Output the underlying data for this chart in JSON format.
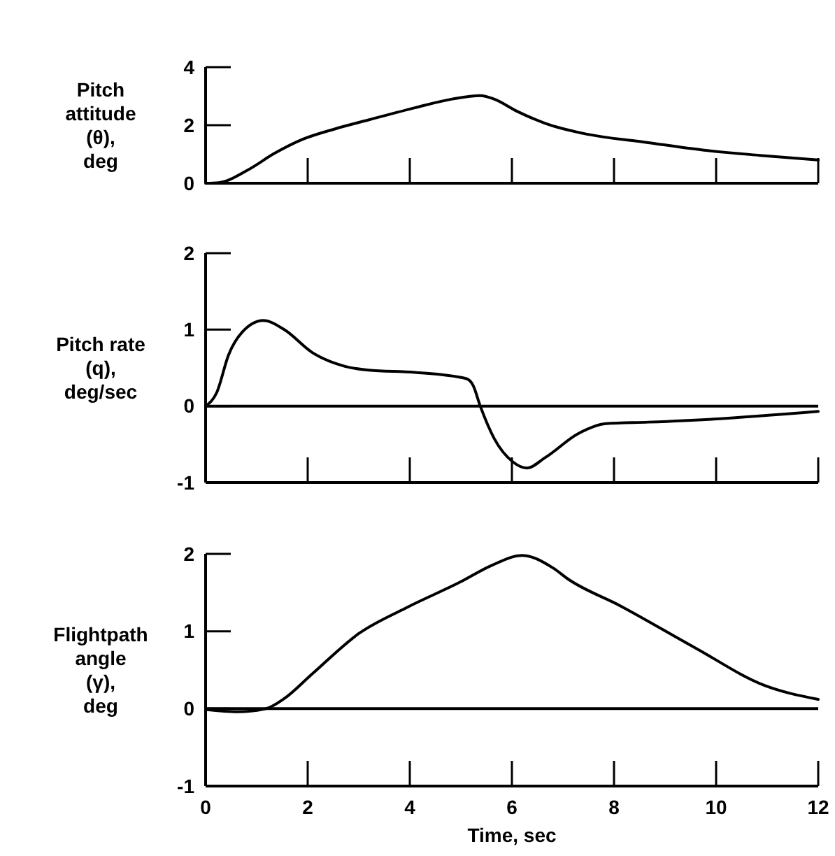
{
  "chart_data": [
    {
      "type": "line",
      "ylabel": "Pitch\nattitude\n(θ),\ndeg",
      "color": "#000000",
      "tick_labels": "y",
      "xlim": [
        0,
        12
      ],
      "xticks": [
        0,
        2,
        4,
        6,
        8,
        10,
        12
      ],
      "ylim": [
        0,
        4
      ],
      "yticks": [
        0,
        2,
        4
      ],
      "x": [
        0,
        0.26,
        0.81,
        1.36,
        1.91,
        2.55,
        3.19,
        4.1,
        4.83,
        5.38,
        5.65,
        6.1,
        6.66,
        7.39,
        8.67,
        9.76,
        10.86,
        12
      ],
      "values": [
        0,
        0.02,
        0.44,
        1.04,
        1.52,
        1.88,
        2.18,
        2.6,
        2.9,
        3.02,
        2.9,
        2.48,
        2.06,
        1.72,
        1.4,
        1.14,
        0.96,
        0.8
      ]
    },
    {
      "type": "line",
      "ylabel": "Pitch rate\n(q),\ndeg/sec",
      "color": "#000000",
      "tick_labels": "y",
      "xlim": [
        0,
        12
      ],
      "xticks": [
        0,
        2,
        4,
        6,
        8,
        10,
        12
      ],
      "ylim": [
        -1,
        2
      ],
      "yticks": [
        -1,
        0,
        1,
        2
      ],
      "ref_lines": [
        {
          "axis": "y",
          "value": 0,
          "label": null
        }
      ],
      "x": [
        0,
        0.22,
        0.45,
        0.72,
        1.13,
        1.54,
        2.09,
        2.73,
        3.19,
        4.1,
        5.1,
        5.24,
        5.38,
        5.65,
        6.02,
        6.29,
        6.66,
        7.3,
        7.84,
        8.67,
        9.95,
        12
      ],
      "values": [
        0,
        0.18,
        0.67,
        0.97,
        1.12,
        1.0,
        0.7,
        0.52,
        0.47,
        0.44,
        0.36,
        0.27,
        0,
        -0.42,
        -0.73,
        -0.81,
        -0.67,
        -0.36,
        -0.23,
        -0.21,
        -0.17,
        -0.07
      ]
    },
    {
      "type": "line",
      "ylabel": "Flightpath\nangle\n(γ),\ndeg",
      "xlabel": "Time, sec",
      "color": "#000000",
      "xlim": [
        0,
        12
      ],
      "xticks": [
        0,
        2,
        4,
        6,
        8,
        10,
        12
      ],
      "ylim": [
        -1,
        2
      ],
      "yticks": [
        -1,
        0,
        1,
        2
      ],
      "ref_lines": [
        {
          "axis": "y",
          "value": 0,
          "label": null
        }
      ],
      "x": [
        0,
        0.63,
        1.18,
        1.54,
        2.09,
        3.0,
        3.92,
        5.0,
        5.6,
        6.2,
        6.8,
        7.11,
        8.12,
        9.58,
        10.95,
        12
      ],
      "values": [
        -0.01,
        -0.04,
        0,
        0.13,
        0.45,
        0.97,
        1.3,
        1.64,
        1.85,
        1.98,
        1.82,
        1.67,
        1.33,
        0.79,
        0.3,
        0.12
      ]
    }
  ]
}
